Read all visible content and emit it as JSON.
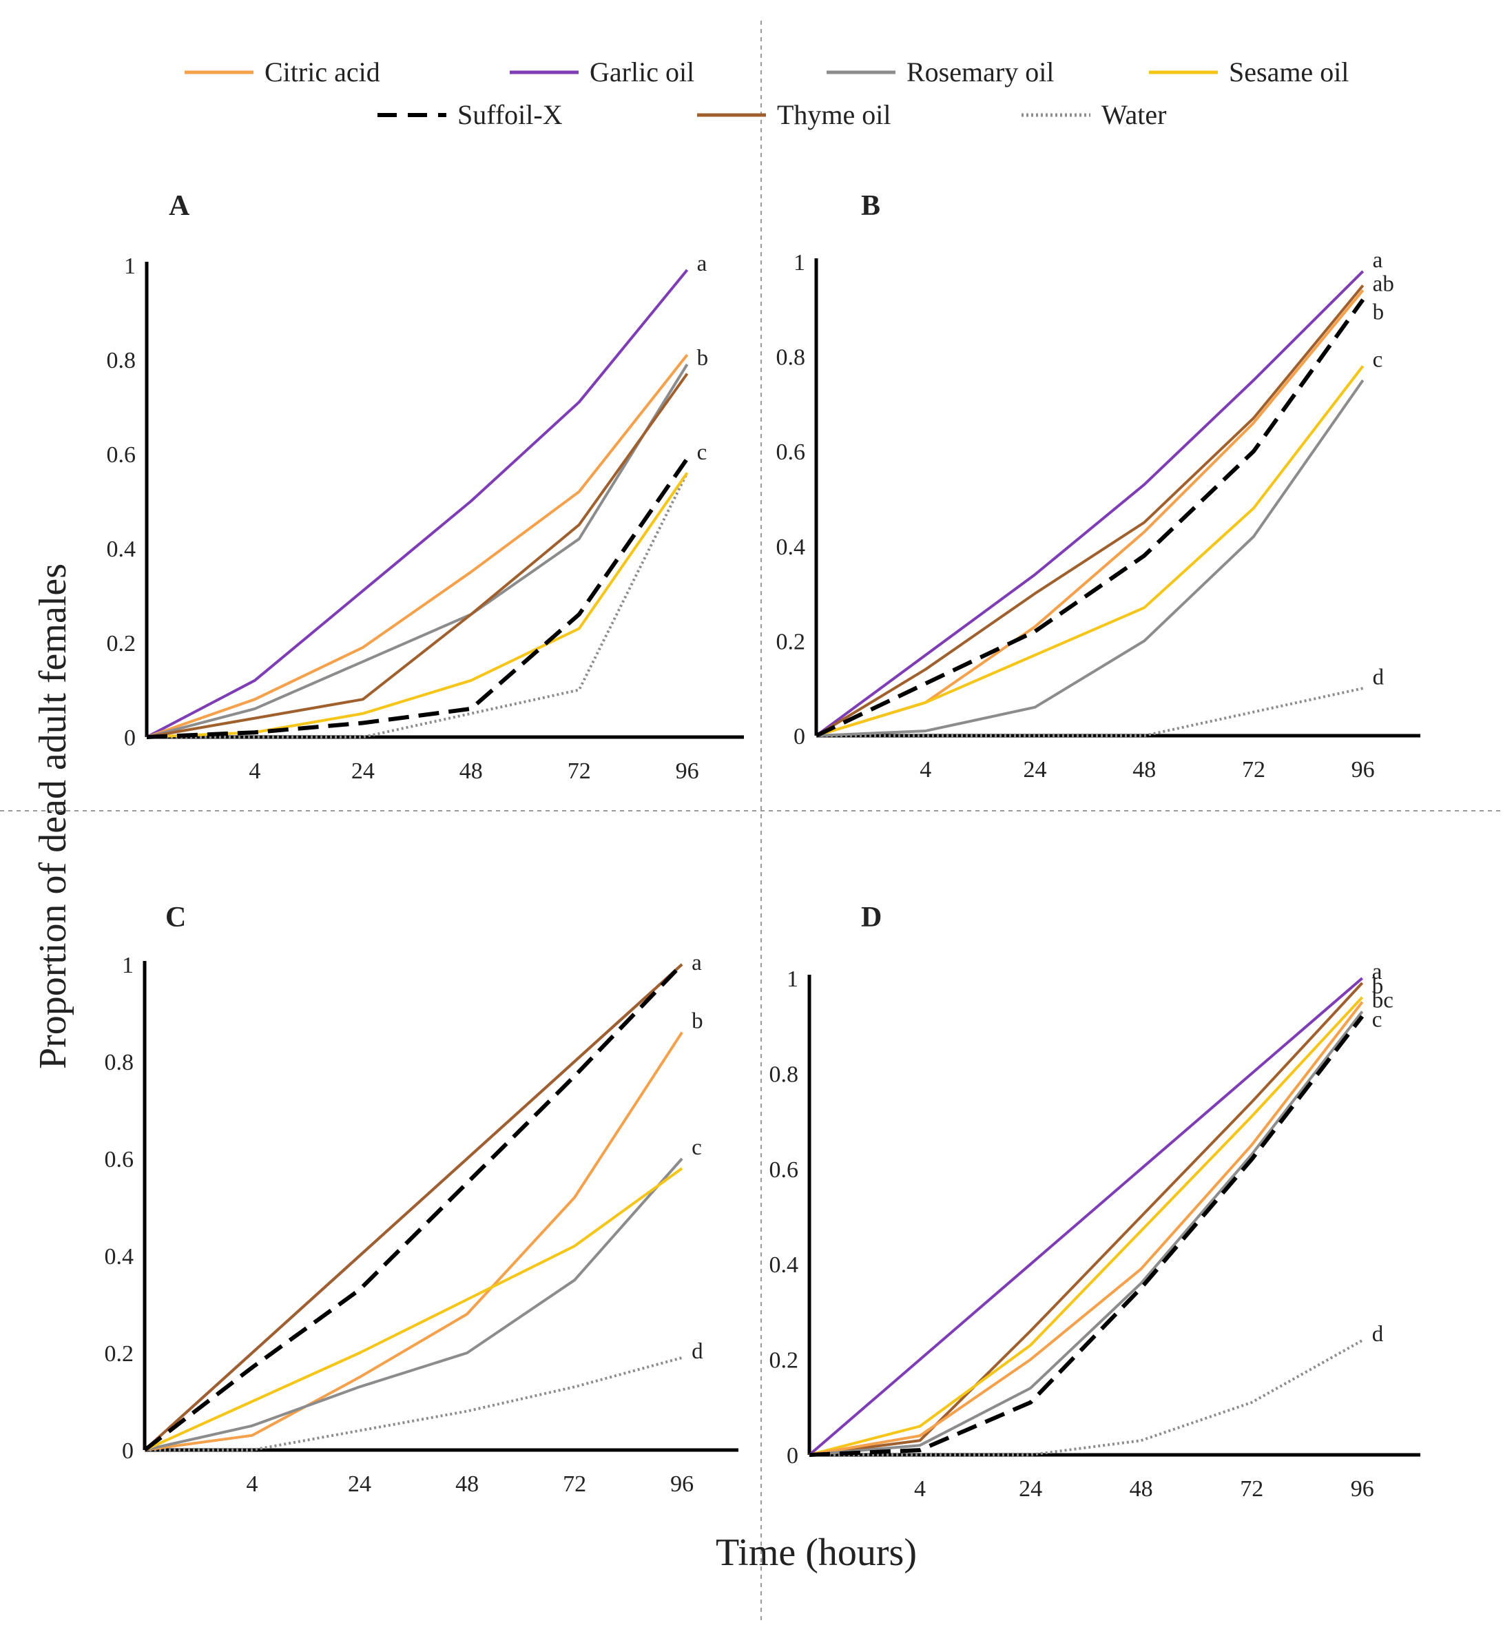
{
  "figure": {
    "ylabel": "Proportion of dead adult females",
    "xlabel": "Time (hours)"
  },
  "legend": [
    {
      "name": "Citric acid",
      "color": "#F5A04A",
      "style": "solid"
    },
    {
      "name": "Garlic oil",
      "color": "#7E3DB5",
      "style": "solid"
    },
    {
      "name": "Rosemary oil",
      "color": "#8C8C8C",
      "style": "solid"
    },
    {
      "name": "Sesame oil",
      "color": "#F5C518",
      "style": "solid"
    },
    {
      "name": "Suffoil-X",
      "color": "#000000",
      "style": "dashed"
    },
    {
      "name": "Thyme oil",
      "color": "#A0602D",
      "style": "solid"
    },
    {
      "name": "Water",
      "color": "#8C8C8C",
      "style": "dotted"
    }
  ],
  "chart_data": [
    {
      "panel": "A",
      "type": "line",
      "categories": [
        "",
        "4",
        "24",
        "48",
        "72",
        "96"
      ],
      "ylim": [
        0,
        1
      ],
      "yticks": [
        "0",
        "0.2",
        "0.4",
        "0.6",
        "0.8",
        "1"
      ],
      "series": [
        {
          "name": "Garlic oil",
          "values": [
            0,
            0.12,
            0.31,
            0.5,
            0.71,
            0.99
          ]
        },
        {
          "name": "Citric acid",
          "values": [
            0,
            0.08,
            0.19,
            0.35,
            0.52,
            0.81
          ]
        },
        {
          "name": "Rosemary oil",
          "values": [
            0,
            0.06,
            0.16,
            0.26,
            0.42,
            0.79
          ]
        },
        {
          "name": "Thyme oil",
          "values": [
            0,
            0.04,
            0.08,
            0.26,
            0.45,
            0.77
          ]
        },
        {
          "name": "Suffoil-X",
          "values": [
            0,
            0.01,
            0.03,
            0.06,
            0.26,
            0.59
          ]
        },
        {
          "name": "Sesame oil",
          "values": [
            0,
            0.01,
            0.05,
            0.12,
            0.23,
            0.56
          ]
        },
        {
          "name": "Water",
          "values": [
            0,
            0,
            0,
            0.05,
            0.1,
            0.56
          ]
        }
      ],
      "significance": [
        {
          "label": "a",
          "value": 1.0
        },
        {
          "label": "b",
          "value": 0.8
        },
        {
          "label": "c",
          "value": 0.6
        }
      ]
    },
    {
      "panel": "B",
      "type": "line",
      "categories": [
        "",
        "4",
        "24",
        "48",
        "72",
        "96"
      ],
      "ylim": [
        0,
        1
      ],
      "yticks": [
        "0",
        "0.2",
        "0.4",
        "0.6",
        "0.8",
        "1"
      ],
      "series": [
        {
          "name": "Garlic oil",
          "values": [
            0,
            0.17,
            0.34,
            0.53,
            0.75,
            0.98
          ]
        },
        {
          "name": "Thyme oil",
          "values": [
            0,
            0.14,
            0.3,
            0.45,
            0.67,
            0.95
          ]
        },
        {
          "name": "Citric acid",
          "values": [
            0,
            0.07,
            0.23,
            0.43,
            0.66,
            0.94
          ]
        },
        {
          "name": "Suffoil-X",
          "values": [
            0,
            0.11,
            0.22,
            0.38,
            0.6,
            0.92
          ]
        },
        {
          "name": "Sesame oil",
          "values": [
            0,
            0.07,
            0.17,
            0.27,
            0.48,
            0.78
          ]
        },
        {
          "name": "Rosemary oil",
          "values": [
            0,
            0.01,
            0.06,
            0.2,
            0.42,
            0.75
          ]
        },
        {
          "name": "Water",
          "values": [
            0,
            0,
            0,
            0,
            0.05,
            0.1
          ]
        }
      ],
      "significance": [
        {
          "label": "a",
          "value": 1.0
        },
        {
          "label": "ab",
          "value": 0.95
        },
        {
          "label": "b",
          "value": 0.89
        },
        {
          "label": "c",
          "value": 0.79
        },
        {
          "label": "d",
          "value": 0.12
        }
      ]
    },
    {
      "panel": "C",
      "type": "line",
      "categories": [
        "",
        "4",
        "24",
        "48",
        "72",
        "96"
      ],
      "ylim": [
        0,
        1
      ],
      "yticks": [
        "0",
        "0.2",
        "0.4",
        "0.6",
        "0.8",
        "1"
      ],
      "series": [
        {
          "name": "Garlic oil",
          "values": [
            0,
            0.2,
            0.4,
            0.6,
            0.8,
            1.0
          ]
        },
        {
          "name": "Thyme oil",
          "values": [
            0,
            0.2,
            0.4,
            0.6,
            0.8,
            1.0
          ]
        },
        {
          "name": "Suffoil-X",
          "values": [
            0,
            0.17,
            0.33,
            0.55,
            0.77,
            1.0
          ]
        },
        {
          "name": "Citric acid",
          "values": [
            0,
            0.03,
            0.15,
            0.28,
            0.52,
            0.86
          ]
        },
        {
          "name": "Rosemary oil",
          "values": [
            0,
            0.05,
            0.13,
            0.2,
            0.35,
            0.6
          ]
        },
        {
          "name": "Sesame oil",
          "values": [
            0,
            0.1,
            0.2,
            0.31,
            0.42,
            0.58
          ]
        },
        {
          "name": "Water",
          "values": [
            0,
            0,
            0.04,
            0.08,
            0.13,
            0.19
          ]
        }
      ],
      "significance": [
        {
          "label": "a",
          "value": 1.0
        },
        {
          "label": "b",
          "value": 0.88
        },
        {
          "label": "c",
          "value": 0.62
        },
        {
          "label": "d",
          "value": 0.2
        }
      ]
    },
    {
      "panel": "D",
      "type": "line",
      "categories": [
        "",
        "4",
        "24",
        "48",
        "72",
        "96"
      ],
      "ylim": [
        0,
        1
      ],
      "yticks": [
        "0",
        "0.2",
        "0.4",
        "0.6",
        "0.8",
        "1"
      ],
      "series": [
        {
          "name": "Garlic oil",
          "values": [
            0,
            0.2,
            0.4,
            0.6,
            0.8,
            1.0
          ]
        },
        {
          "name": "Thyme oil",
          "values": [
            0,
            0.03,
            0.26,
            0.5,
            0.74,
            0.99
          ]
        },
        {
          "name": "Sesame oil",
          "values": [
            0,
            0.06,
            0.23,
            0.47,
            0.71,
            0.96
          ]
        },
        {
          "name": "Citric acid",
          "values": [
            0,
            0.04,
            0.2,
            0.39,
            0.65,
            0.95
          ]
        },
        {
          "name": "Rosemary oil",
          "values": [
            0,
            0.02,
            0.14,
            0.36,
            0.63,
            0.93
          ]
        },
        {
          "name": "Suffoil-X",
          "values": [
            0,
            0.01,
            0.11,
            0.35,
            0.62,
            0.92
          ]
        },
        {
          "name": "Water",
          "values": [
            0,
            0,
            0,
            0.03,
            0.11,
            0.24
          ]
        }
      ],
      "significance": [
        {
          "label": "a",
          "value": 1.01
        },
        {
          "label": "b",
          "value": 0.98
        },
        {
          "label": "bc",
          "value": 0.95
        },
        {
          "label": "c",
          "value": 0.91
        },
        {
          "label": "d",
          "value": 0.25
        }
      ]
    }
  ]
}
